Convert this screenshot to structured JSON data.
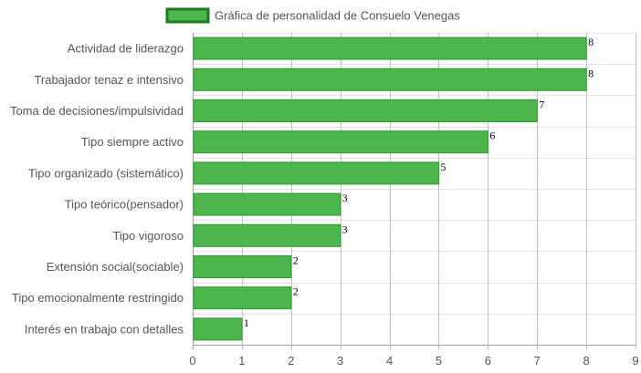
{
  "chart_data": {
    "type": "bar",
    "orientation": "horizontal",
    "categories": [
      "Actividad de liderazgo",
      "Trabajador tenaz e intensivo",
      "Toma de decisiones/impulsividad",
      "Tipo siempre activo",
      "Tipo organizado (sistemático)",
      "Tipo teórico(pensador)",
      "Tipo vigoroso",
      "Extensión social(sociable)",
      "Tipo emocionalmente restringido",
      "Interés en trabajo con detalles"
    ],
    "series": [
      {
        "name": "Gráfica de personalidad de Consuelo Venegas",
        "values": [
          8,
          8,
          7,
          6,
          5,
          3,
          3,
          2,
          2,
          1
        ]
      }
    ],
    "xlim": [
      0,
      9
    ],
    "x_ticks": [
      0,
      1,
      2,
      3,
      4,
      5,
      6,
      7,
      8,
      9
    ],
    "grid": true,
    "legend_position": "top-center",
    "bar_color": "#4db54d",
    "bar_border_color": "#2f9a2f",
    "legend_border_color": "#1e7a1e",
    "grid_color": "#c0c0c0",
    "label_color": "#555555"
  }
}
